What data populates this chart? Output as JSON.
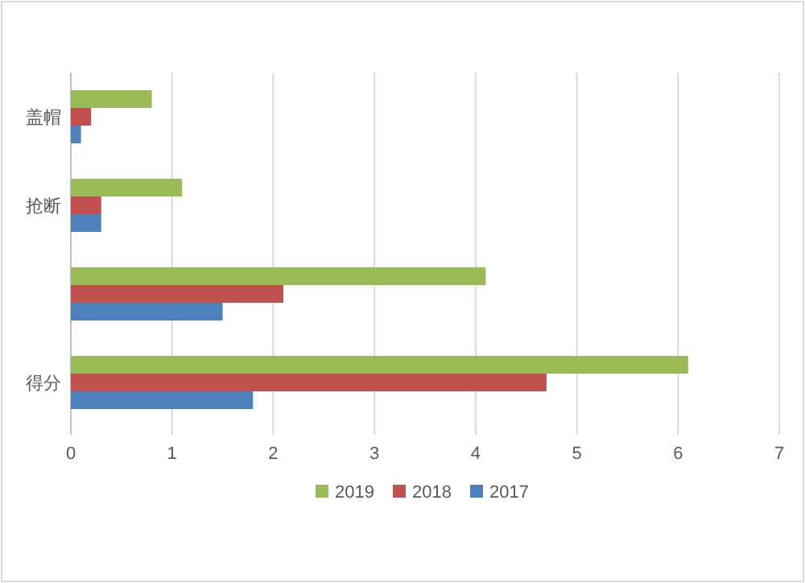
{
  "chart_data": {
    "type": "bar",
    "orientation": "horizontal",
    "categories": [
      "盖帽",
      "抢断",
      null,
      "得分"
    ],
    "series": [
      {
        "name": "2019",
        "color": "#9bbb59",
        "values": [
          0.8,
          1.1,
          4.1,
          6.1
        ]
      },
      {
        "name": "2018",
        "color": "#c0504d",
        "values": [
          0.2,
          0.3,
          2.1,
          4.7
        ]
      },
      {
        "name": "2017",
        "color": "#4f81bd",
        "values": [
          0.1,
          0.3,
          1.5,
          1.8
        ]
      }
    ],
    "xlim": [
      0,
      7
    ],
    "xticks": [
      0,
      1,
      2,
      3,
      4,
      5,
      6,
      7
    ],
    "grid": "x",
    "legend": "bottom"
  }
}
